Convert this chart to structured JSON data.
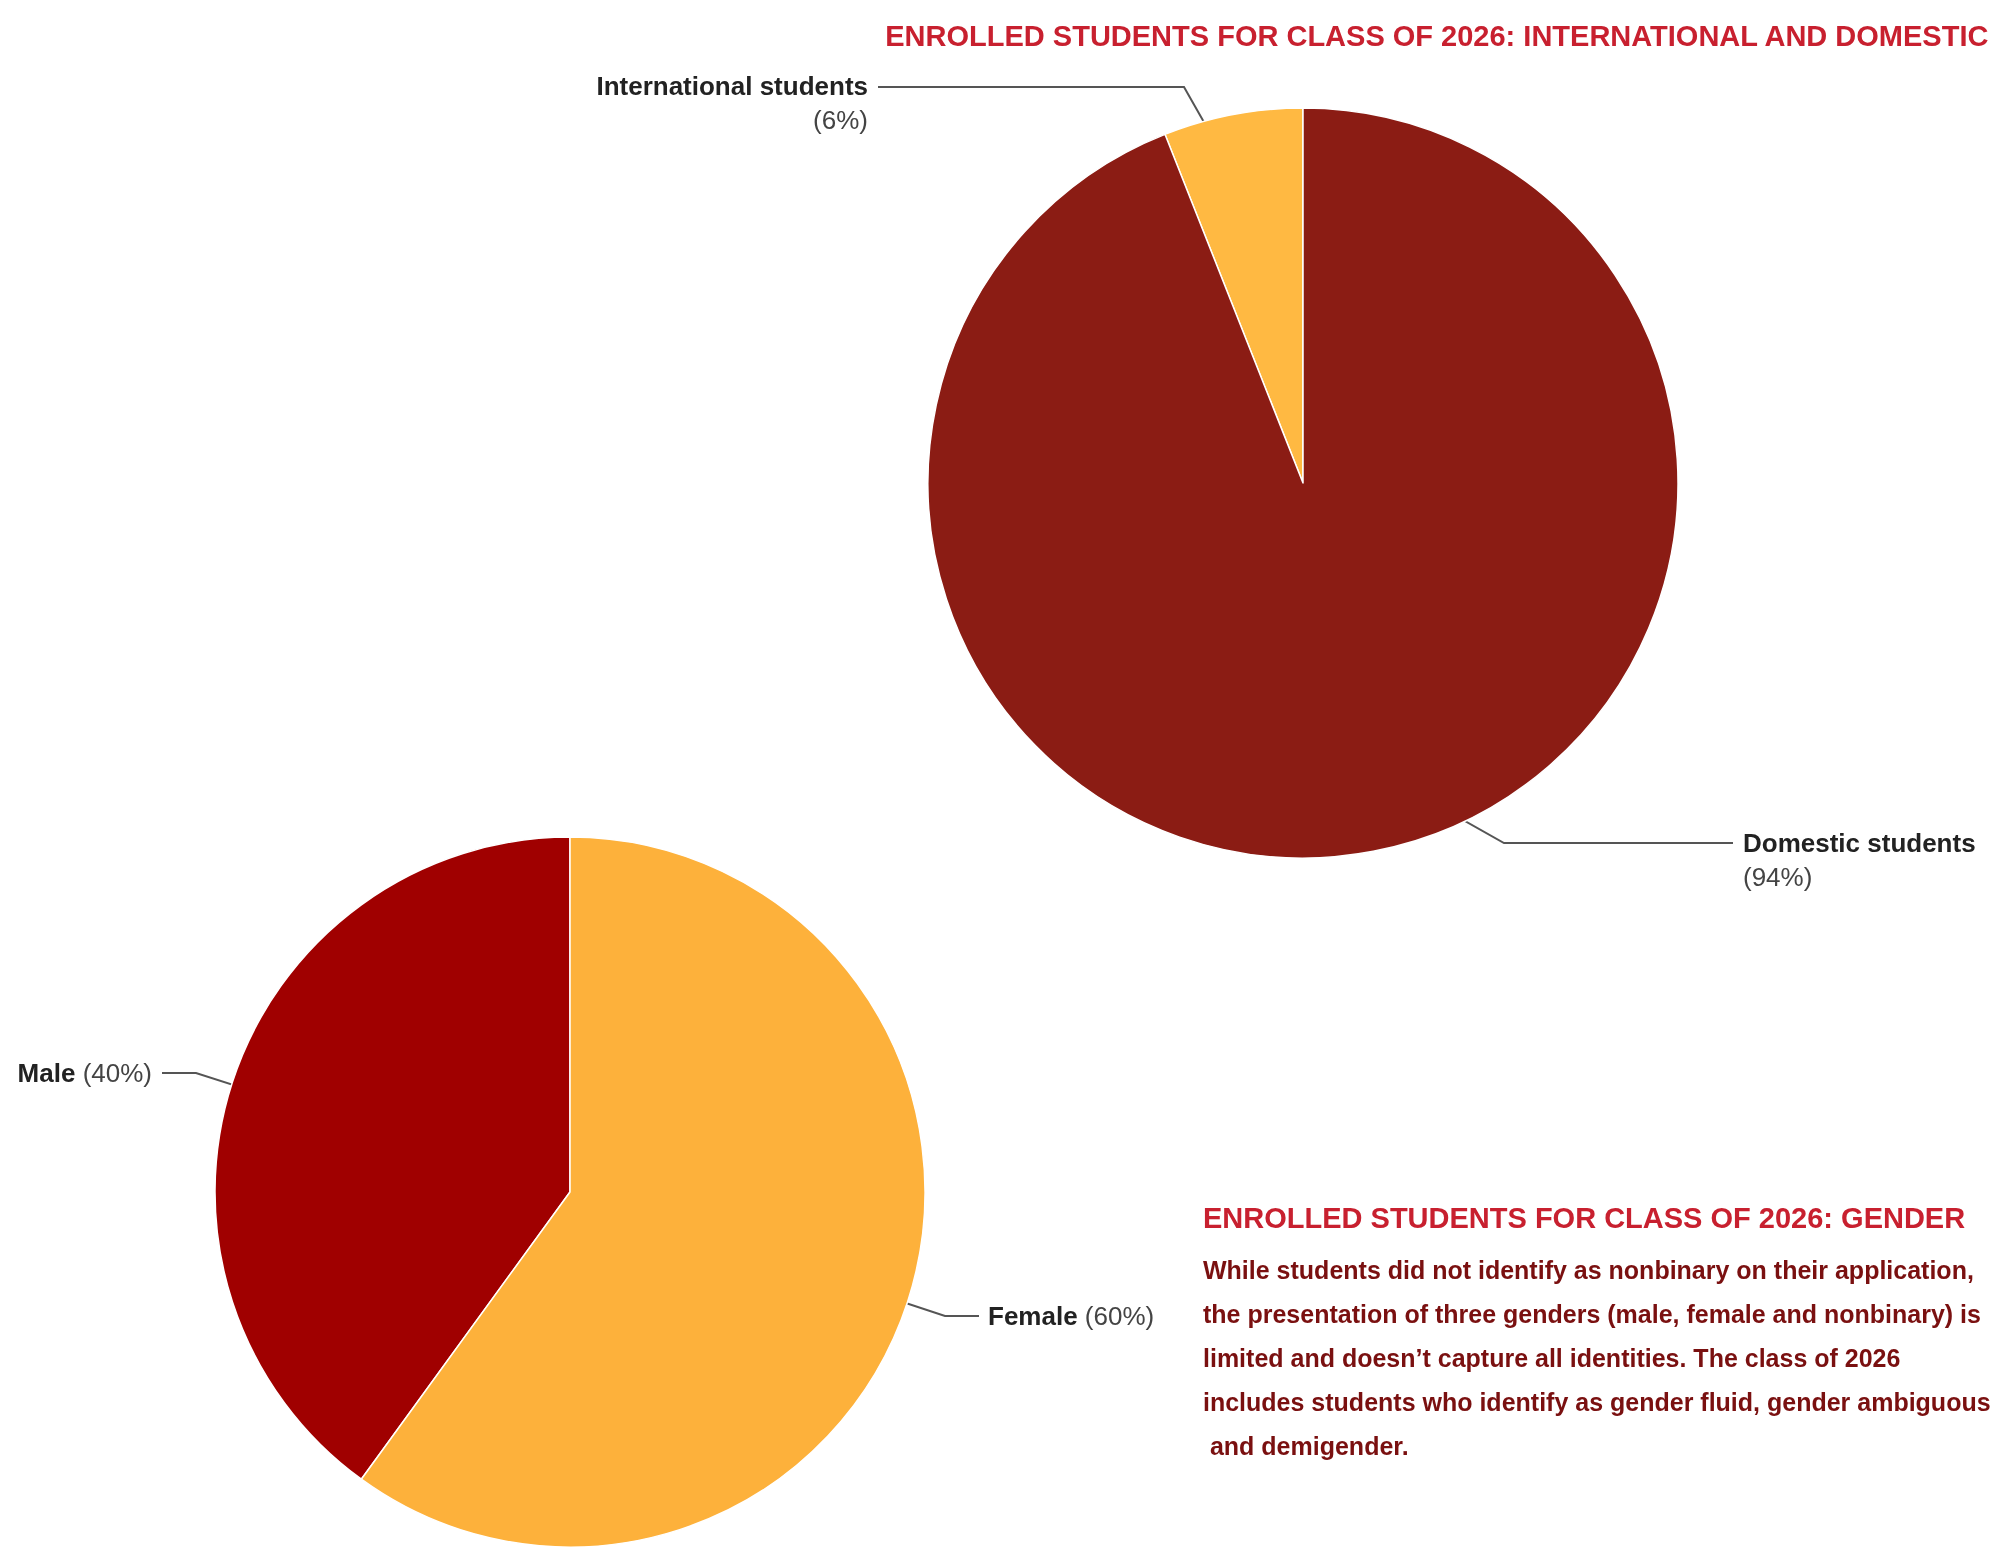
{
  "chart_data": [
    {
      "type": "pie",
      "title": "ENROLLED STUDENTS FOR CLASS OF 2026: INTERNATIONAL AND DOMESTIC",
      "categories": [
        "International students",
        "Domestic students"
      ],
      "values": [
        6,
        94
      ],
      "colors": [
        "#ffb942",
        "#8b1c14"
      ],
      "value_labels": [
        "(6%)",
        "(94%)"
      ],
      "legend": false
    },
    {
      "type": "pie",
      "title": "ENROLLED STUDENTS FOR CLASS OF 2026: GENDER",
      "subtitle": "While students did not identify as nonbinary on their application, the presentation of three genders (male, female and nonbinary) is limited and doesn’t capture all identities. The class of 2026 includes students who identify as gender fluid, gender ambiguous and demigender.",
      "categories": [
        "Male",
        "Female"
      ],
      "values": [
        40,
        60
      ],
      "colors": [
        "#a00000",
        "#fdb13b"
      ],
      "value_labels": [
        "(40%)",
        "(60%)"
      ],
      "legend": false
    }
  ]
}
